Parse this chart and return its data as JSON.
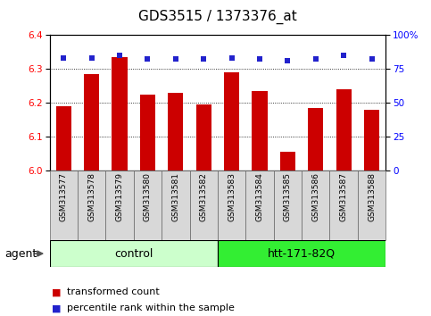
{
  "title": "GDS3515 / 1373376_at",
  "samples": [
    "GSM313577",
    "GSM313578",
    "GSM313579",
    "GSM313580",
    "GSM313581",
    "GSM313582",
    "GSM313583",
    "GSM313584",
    "GSM313585",
    "GSM313586",
    "GSM313587",
    "GSM313588"
  ],
  "bar_values": [
    6.19,
    6.285,
    6.335,
    6.225,
    6.23,
    6.195,
    6.29,
    6.235,
    6.055,
    6.185,
    6.24,
    6.18
  ],
  "percentile_values": [
    83,
    83,
    85,
    82,
    82,
    82,
    83,
    82,
    81,
    82,
    85,
    82
  ],
  "ylim_left": [
    6.0,
    6.4
  ],
  "ylim_right": [
    0,
    100
  ],
  "yticks_left": [
    6.0,
    6.1,
    6.2,
    6.3,
    6.4
  ],
  "yticks_right": [
    0,
    25,
    50,
    75,
    100
  ],
  "bar_color": "#cc0000",
  "dot_color": "#2222cc",
  "bar_width": 0.55,
  "groups": [
    {
      "label": "control",
      "start": 0,
      "end": 6,
      "color": "#ccffcc"
    },
    {
      "label": "htt-171-82Q",
      "start": 6,
      "end": 12,
      "color": "#33ee33"
    }
  ],
  "agent_label": "agent",
  "legend_bar_label": "transformed count",
  "legend_dot_label": "percentile rank within the sample",
  "title_fontsize": 11,
  "tick_fontsize": 7.5,
  "sample_fontsize": 6.5,
  "group_fontsize": 9,
  "legend_fontsize": 8
}
